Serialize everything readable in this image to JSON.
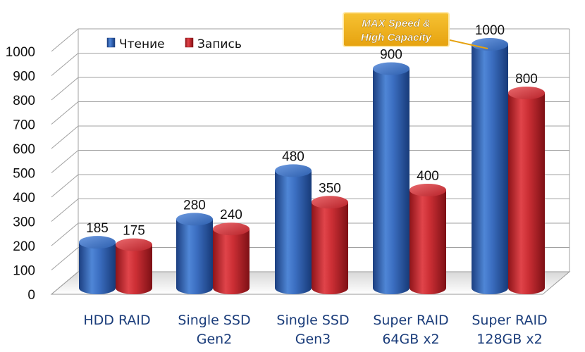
{
  "chart_data": {
    "type": "bar",
    "categories": [
      [
        "HDD RAID"
      ],
      [
        "Single SSD",
        "Gen2"
      ],
      [
        "Single SSD",
        "Gen3"
      ],
      [
        "Super RAID",
        "64GB x2"
      ],
      [
        "Super RAID",
        "128GB x2"
      ]
    ],
    "series": [
      {
        "name": "Чтение",
        "values": [
          185,
          280,
          480,
          900,
          1000
        ]
      },
      {
        "name": "Запись",
        "values": [
          175,
          240,
          350,
          400,
          800
        ]
      }
    ],
    "ylim": [
      0,
      1000
    ],
    "yticks": [
      "0",
      "100",
      "200",
      "300",
      "400",
      "500",
      "600",
      "700",
      "800",
      "900",
      "1000"
    ],
    "grid": true,
    "legend_position": "top-left",
    "colors": {
      "read": "#2f62b5",
      "write": "#c0272d"
    },
    "callout": {
      "lines": [
        "MAX Speed &",
        "High Capacity"
      ]
    }
  }
}
